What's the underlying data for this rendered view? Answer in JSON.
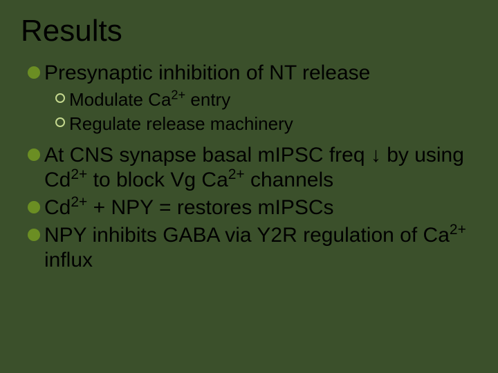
{
  "colors": {
    "background": "#3b502b",
    "dot_fill": "#6b8e23",
    "ring_border": "#c5d98f",
    "text": "#000000"
  },
  "typography": {
    "title_fontsize": 44,
    "l1_fontsize": 30,
    "l2_fontsize": 26,
    "font_family": "Arial"
  },
  "title": "Results",
  "b1": "Presynaptic inhibition of NT release",
  "b1a": "Modulate Ca<sup>2+</sup> entry",
  "b1b": "Regulate release machinery",
  "b2": "At CNS synapse basal mIPSC freq ↓ by using Cd<sup>2+</sup> to block Vg Ca<sup>2+</sup> channels",
  "b3": "Cd<sup>2+</sup> + NPY = restores mIPSCs",
  "b4": "NPY inhibits GABA via Y2R regulation of Ca<sup>2+</sup> influx"
}
